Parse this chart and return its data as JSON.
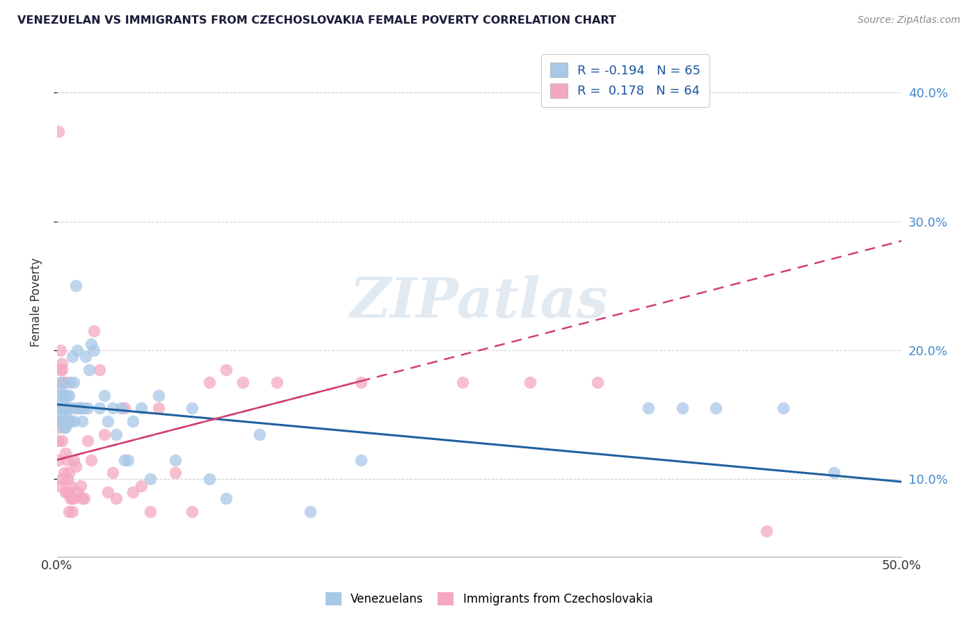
{
  "title": "VENEZUELAN VS IMMIGRANTS FROM CZECHOSLOVAKIA FEMALE POVERTY CORRELATION CHART",
  "source": "Source: ZipAtlas.com",
  "ylabel": "Female Poverty",
  "color_blue": "#a8c8e8",
  "color_pink": "#f4a8c0",
  "color_blue_line": "#2060a0",
  "color_pink_line": "#d04070",
  "watermark_text": "ZIPatlas",
  "xmin": 0.0,
  "xmax": 0.5,
  "ymin": 0.04,
  "ymax": 0.435,
  "blue_scatter_x": [
    0.001,
    0.001,
    0.002,
    0.002,
    0.002,
    0.003,
    0.003,
    0.003,
    0.003,
    0.004,
    0.004,
    0.004,
    0.004,
    0.005,
    0.005,
    0.005,
    0.005,
    0.006,
    0.006,
    0.006,
    0.007,
    0.007,
    0.007,
    0.008,
    0.008,
    0.009,
    0.009,
    0.01,
    0.01,
    0.011,
    0.011,
    0.012,
    0.013,
    0.014,
    0.015,
    0.016,
    0.017,
    0.018,
    0.019,
    0.02,
    0.022,
    0.025,
    0.028,
    0.03,
    0.033,
    0.035,
    0.038,
    0.04,
    0.042,
    0.045,
    0.05,
    0.055,
    0.06,
    0.07,
    0.08,
    0.09,
    0.1,
    0.12,
    0.15,
    0.18,
    0.35,
    0.37,
    0.39,
    0.43,
    0.46
  ],
  "blue_scatter_y": [
    0.165,
    0.155,
    0.17,
    0.155,
    0.15,
    0.175,
    0.16,
    0.155,
    0.145,
    0.165,
    0.155,
    0.14,
    0.155,
    0.15,
    0.145,
    0.155,
    0.14,
    0.155,
    0.165,
    0.145,
    0.165,
    0.145,
    0.155,
    0.145,
    0.175,
    0.195,
    0.155,
    0.145,
    0.175,
    0.155,
    0.25,
    0.2,
    0.155,
    0.155,
    0.145,
    0.155,
    0.195,
    0.155,
    0.185,
    0.205,
    0.2,
    0.155,
    0.165,
    0.145,
    0.155,
    0.135,
    0.155,
    0.115,
    0.115,
    0.145,
    0.155,
    0.1,
    0.165,
    0.115,
    0.155,
    0.1,
    0.085,
    0.135,
    0.075,
    0.115,
    0.155,
    0.155,
    0.155,
    0.155,
    0.105
  ],
  "pink_scatter_x": [
    0.001,
    0.001,
    0.001,
    0.001,
    0.001,
    0.002,
    0.002,
    0.002,
    0.002,
    0.003,
    0.003,
    0.003,
    0.003,
    0.003,
    0.004,
    0.004,
    0.004,
    0.004,
    0.005,
    0.005,
    0.005,
    0.005,
    0.006,
    0.006,
    0.006,
    0.007,
    0.007,
    0.007,
    0.008,
    0.008,
    0.009,
    0.009,
    0.01,
    0.01,
    0.011,
    0.012,
    0.013,
    0.014,
    0.015,
    0.016,
    0.018,
    0.02,
    0.022,
    0.025,
    0.028,
    0.03,
    0.033,
    0.035,
    0.04,
    0.045,
    0.05,
    0.055,
    0.06,
    0.07,
    0.08,
    0.09,
    0.1,
    0.11,
    0.13,
    0.18,
    0.24,
    0.28,
    0.32,
    0.42
  ],
  "pink_scatter_y": [
    0.37,
    0.14,
    0.13,
    0.115,
    0.095,
    0.2,
    0.185,
    0.175,
    0.145,
    0.19,
    0.185,
    0.145,
    0.13,
    0.1,
    0.175,
    0.165,
    0.145,
    0.105,
    0.175,
    0.155,
    0.12,
    0.09,
    0.115,
    0.1,
    0.09,
    0.105,
    0.09,
    0.075,
    0.095,
    0.085,
    0.085,
    0.075,
    0.115,
    0.085,
    0.11,
    0.09,
    0.155,
    0.095,
    0.085,
    0.085,
    0.13,
    0.115,
    0.215,
    0.185,
    0.135,
    0.09,
    0.105,
    0.085,
    0.155,
    0.09,
    0.095,
    0.075,
    0.155,
    0.105,
    0.075,
    0.175,
    0.185,
    0.175,
    0.175,
    0.175,
    0.175,
    0.175,
    0.175,
    0.06
  ],
  "blue_trend_x": [
    0.0,
    0.5
  ],
  "blue_trend_y": [
    0.158,
    0.098
  ],
  "pink_trend_x": [
    0.0,
    0.5
  ],
  "pink_trend_y": [
    0.115,
    0.285
  ],
  "legend_label1": "R = -0.194   N = 65",
  "legend_label2": "R =  0.178   N = 64"
}
